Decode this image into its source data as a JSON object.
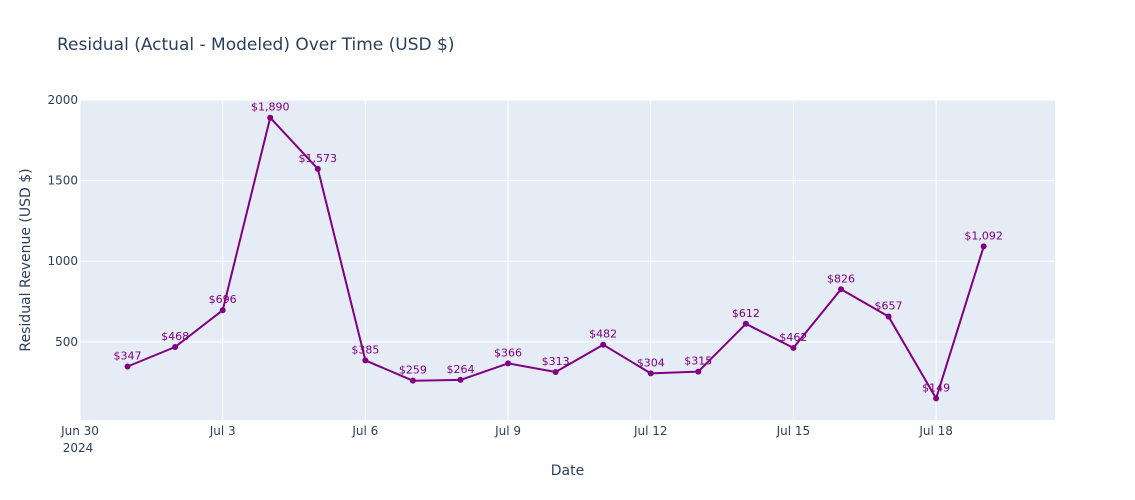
{
  "chart_data": {
    "type": "line",
    "title": "Residual (Actual - Modeled) Over Time (USD $)",
    "xlabel": "Date",
    "ylabel": "Residual Revenue (USD $)",
    "x": [
      "2024-07-01",
      "2024-07-02",
      "2024-07-03",
      "2024-07-04",
      "2024-07-05",
      "2024-07-06",
      "2024-07-07",
      "2024-07-08",
      "2024-07-09",
      "2024-07-10",
      "2024-07-11",
      "2024-07-12",
      "2024-07-13",
      "2024-07-14",
      "2024-07-15",
      "2024-07-16",
      "2024-07-17",
      "2024-07-18",
      "2024-07-19"
    ],
    "values": [
      347,
      468,
      696,
      1890,
      1573,
      385,
      259,
      264,
      366,
      313,
      482,
      304,
      315,
      612,
      462,
      826,
      657,
      149,
      1092
    ],
    "data_labels": [
      "$347",
      "$468",
      "$696",
      "$1,890",
      "$1,573",
      "$385",
      "$259",
      "$264",
      "$366",
      "$313",
      "$482",
      "$304",
      "$315",
      "$612",
      "$462",
      "$826",
      "$657",
      "$149",
      "$1,092"
    ],
    "xlim": [
      "2024-06-30T00:00",
      "2024-07-20T12:00"
    ],
    "ylim": [
      15,
      2000
    ],
    "x_ticks": [
      {
        "date": "2024-06-30",
        "label": "Jun 30",
        "sublabel": "2024"
      },
      {
        "date": "2024-07-03",
        "label": "Jul 3"
      },
      {
        "date": "2024-07-06",
        "label": "Jul 6"
      },
      {
        "date": "2024-07-09",
        "label": "Jul 9"
      },
      {
        "date": "2024-07-12",
        "label": "Jul 12"
      },
      {
        "date": "2024-07-15",
        "label": "Jul 15"
      },
      {
        "date": "2024-07-18",
        "label": "Jul 18"
      }
    ],
    "y_ticks": [
      {
        "value": 500,
        "label": "500"
      },
      {
        "value": 1000,
        "label": "1000"
      },
      {
        "value": 1500,
        "label": "1500"
      },
      {
        "value": 2000,
        "label": "2000"
      }
    ],
    "grid": true,
    "colors": {
      "line": "#800080",
      "plot_bg": "#e5ecf6",
      "grid": "#ffffff",
      "text": "#2a3f5f"
    }
  }
}
